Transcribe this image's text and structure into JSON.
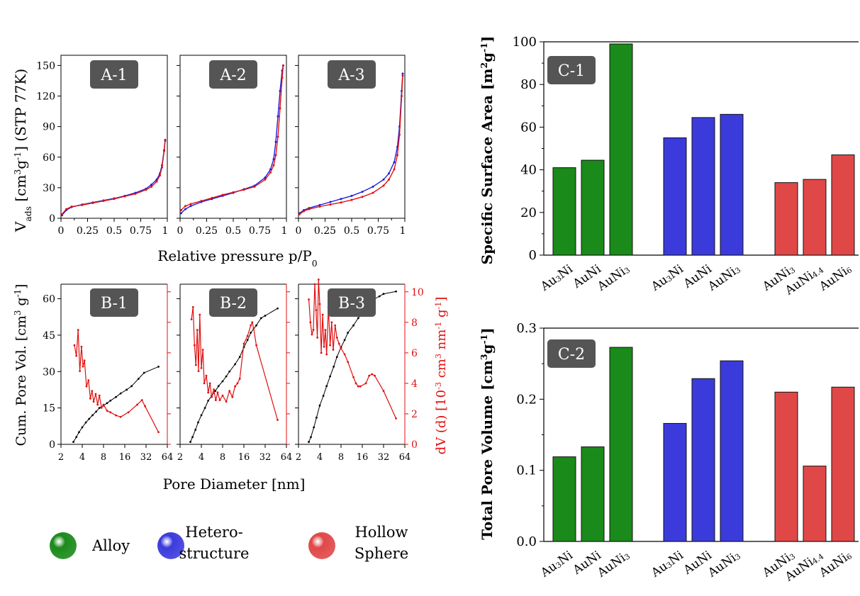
{
  "colors": {
    "alloy": "#1a8a1a",
    "hetero": "#3b3bdc",
    "hollow": "#e04848",
    "ads_line": "#1f1fe0",
    "des_line": "#e01010",
    "cum_line": "#000000",
    "dv_line": "#e01010",
    "axis_red": "#e01010",
    "panel_label_bg": "#555555",
    "panel_label_fg": "#ffffff"
  },
  "legend": {
    "items": [
      {
        "label_lines": [
          "Alloy"
        ],
        "color": "alloy",
        "icon": "sphere-icon"
      },
      {
        "label_lines": [
          "Hetero-",
          "structure"
        ],
        "color": "hetero",
        "icon": "sphere-icon"
      },
      {
        "label_lines": [
          "Hollow",
          "Sphere"
        ],
        "color": "hollow",
        "icon": "sphere-icon"
      }
    ]
  },
  "chart_data": [
    {
      "id": "A",
      "type": "line",
      "panels": [
        "A-1",
        "A-2",
        "A-3"
      ],
      "ylabel": "V_ads [cm3g-1] (STP 77K)",
      "ylabel_parts": {
        "main": "V",
        "sub": "ads",
        "rest1": " [cm",
        "sup1": "3",
        "rest2": "g",
        "sup2": "-1",
        "rest3": "]  (STP 77K)"
      },
      "xlabel": "Relative pressure p/P0",
      "xlabel_parts": {
        "main": "Relative pressure p/P",
        "sub": "0"
      },
      "xlim": [
        0,
        1
      ],
      "ylim": [
        0,
        160
      ],
      "yticks": [
        0,
        30,
        60,
        90,
        120,
        150
      ],
      "xticks": [
        0,
        0.25,
        0.5,
        0.75,
        1
      ],
      "xtick_labels": [
        "0",
        "0.25",
        "0.5",
        "0.75",
        "1"
      ],
      "series": [
        [
          {
            "kind": "ads",
            "x": [
              0.01,
              0.05,
              0.1,
              0.2,
              0.3,
              0.4,
              0.5,
              0.6,
              0.7,
              0.8,
              0.85,
              0.9,
              0.93,
              0.95,
              0.97,
              0.98
            ],
            "y": [
              3,
              8,
              11,
              13.5,
              15.5,
              17.5,
              19.5,
              22,
              25,
              29,
              33,
              38,
              44,
              52,
              67,
              77
            ]
          },
          {
            "kind": "des",
            "x": [
              0.01,
              0.05,
              0.1,
              0.2,
              0.3,
              0.4,
              0.5,
              0.6,
              0.7,
              0.8,
              0.85,
              0.9,
              0.93,
              0.95,
              0.97,
              0.98
            ],
            "y": [
              4,
              9,
              11.5,
              13,
              15,
              17,
              19,
              21.5,
              24,
              28,
              31,
              36,
              42,
              50,
              66,
              76
            ]
          }
        ],
        [
          {
            "kind": "ads",
            "x": [
              0.01,
              0.05,
              0.1,
              0.2,
              0.3,
              0.4,
              0.5,
              0.6,
              0.7,
              0.8,
              0.85,
              0.88,
              0.9,
              0.92,
              0.94,
              0.96,
              0.97
            ],
            "y": [
              5,
              9,
              12,
              16,
              19,
              22,
              25,
              28.5,
              32,
              40,
              48,
              58,
              75,
              100,
              125,
              145,
              150
            ]
          },
          {
            "kind": "des",
            "x": [
              0.01,
              0.05,
              0.1,
              0.2,
              0.3,
              0.4,
              0.5,
              0.6,
              0.7,
              0.8,
              0.85,
              0.88,
              0.9,
              0.92,
              0.94,
              0.96,
              0.97
            ],
            "y": [
              8,
              12,
              14,
              17,
              20,
              23,
              25.5,
              28,
              31,
              38,
              45,
              52,
              62,
              80,
              108,
              138,
              150
            ]
          }
        ],
        [
          {
            "kind": "ads",
            "x": [
              0.01,
              0.05,
              0.1,
              0.2,
              0.3,
              0.4,
              0.5,
              0.6,
              0.7,
              0.8,
              0.85,
              0.9,
              0.93,
              0.95,
              0.97,
              0.98
            ],
            "y": [
              5,
              8,
              10,
              13,
              16,
              19,
              22,
              26,
              31,
              38,
              44,
              55,
              70,
              90,
              125,
              142
            ]
          },
          {
            "kind": "des",
            "x": [
              0.01,
              0.05,
              0.1,
              0.2,
              0.3,
              0.4,
              0.5,
              0.6,
              0.7,
              0.8,
              0.85,
              0.9,
              0.93,
              0.95,
              0.97,
              0.98
            ],
            "y": [
              4,
              7,
              9,
              11.5,
              13.5,
              15.5,
              18,
              21,
              25,
              32,
              38,
              48,
              62,
              82,
              120,
              140
            ]
          }
        ]
      ]
    },
    {
      "id": "B",
      "type": "line",
      "panels": [
        "B-1",
        "B-2",
        "B-3"
      ],
      "ylabel": "Cum. Pore Vol. [cm3 g-1]",
      "ylabel_parts": {
        "main": "Cum. Pore Vol. [cm",
        "sup1": "3",
        "rest1": " g",
        "sup2": "-1",
        "rest2": "]"
      },
      "ylabel_right": "dV (d) [10-3 cm3 nm-1 g-1]",
      "ylabel_right_parts": {
        "main": "dV (d) [10",
        "sup1": "-3",
        "rest1": " cm",
        "sup2": "3",
        "rest2": " nm",
        "sup3": "-1",
        "rest3": " g",
        "sup4": "-1",
        "rest4": "]"
      },
      "xlabel": "Pore Diameter [nm]",
      "xscale": "log2",
      "xlim": [
        2,
        64
      ],
      "xticks": [
        2,
        4,
        8,
        16,
        32,
        64
      ],
      "xtick_labels": [
        "2",
        "4",
        "8",
        "16",
        "32",
        "64"
      ],
      "ylim": [
        0,
        66
      ],
      "yticks": [
        0,
        15,
        30,
        45,
        60
      ],
      "ylim_right": [
        0,
        10.5
      ],
      "yticks_right": [
        0,
        2,
        4,
        6,
        8,
        10
      ],
      "series": [
        [
          {
            "kind": "cum",
            "x": [
              3,
              3.3,
              3.6,
              4,
              4.5,
              5,
              5.6,
              6.3,
              7,
              8,
              9,
              10,
              12,
              14,
              17,
              20,
              25,
              30,
              48
            ],
            "y": [
              1,
              3,
              5,
              7,
              9,
              10.5,
              12,
              13.5,
              15,
              16,
              17,
              18,
              19.5,
              21,
              22.5,
              24,
              27,
              29.5,
              32
            ]
          },
          {
            "kind": "dv",
            "x": [
              3.1,
              3.3,
              3.5,
              3.7,
              3.9,
              4.1,
              4.3,
              4.6,
              4.9,
              5.2,
              5.5,
              5.8,
              6.2,
              6.6,
              7,
              7.5,
              8,
              9,
              10,
              12,
              14,
              18,
              24,
              28,
              31,
              48
            ],
            "y": [
              6.5,
              5.8,
              7.5,
              4.8,
              6.4,
              5.1,
              5.5,
              3.8,
              4.2,
              3.0,
              3.5,
              2.8,
              3.3,
              2.6,
              3.2,
              2.4,
              2.6,
              2.2,
              2.1,
              1.9,
              1.8,
              2.1,
              2.6,
              2.9,
              2.5,
              0.8
            ]
          }
        ],
        [
          {
            "kind": "cum",
            "x": [
              2.8,
              3,
              3.3,
              3.6,
              4,
              4.5,
              5,
              5.6,
              6.3,
              7,
              8,
              9,
              10,
              12,
              14,
              16,
              18,
              20,
              24,
              28,
              32,
              48
            ],
            "y": [
              1,
              3,
              6,
              9,
              12,
              15,
              18,
              20,
              22,
              24,
              26,
              28,
              30,
              33,
              36,
              40,
              43,
              46,
              49,
              52,
              53,
              56
            ]
          },
          {
            "kind": "dv",
            "x": [
              2.9,
              3.05,
              3.2,
              3.35,
              3.5,
              3.65,
              3.8,
              4,
              4.2,
              4.4,
              4.7,
              5,
              5.3,
              5.6,
              6,
              6.4,
              6.8,
              7.3,
              8,
              9,
              10,
              11,
              12,
              13,
              14,
              16,
              18,
              20,
              21,
              22,
              24,
              48
            ],
            "y": [
              8.2,
              9.0,
              6.5,
              5.2,
              7.5,
              4.8,
              8.5,
              5.0,
              6.2,
              4.0,
              4.5,
              3.4,
              4.0,
              3.1,
              3.6,
              2.9,
              3.4,
              2.9,
              3.2,
              2.8,
              3.5,
              3.1,
              3.8,
              4.0,
              4.3,
              6.6,
              7.1,
              7.8,
              8.0,
              7.6,
              6.5,
              1.6
            ]
          }
        ],
        [
          {
            "kind": "cum",
            "x": [
              2.8,
              3,
              3.3,
              3.6,
              4,
              4.5,
              5,
              5.6,
              6.3,
              7,
              8,
              9,
              10,
              12,
              14,
              16,
              18,
              20,
              24,
              28,
              32,
              48
            ],
            "y": [
              1,
              3,
              7,
              11,
              16,
              20,
              24,
              28,
              32,
              36,
              40,
              43,
              46,
              49,
              52,
              54,
              56,
              58,
              60,
              61,
              62,
              63
            ]
          },
          {
            "kind": "dv",
            "x": [
              2.8,
              2.95,
              3.1,
              3.25,
              3.4,
              3.55,
              3.7,
              3.85,
              4,
              4.2,
              4.4,
              4.6,
              4.8,
              5.0,
              5.3,
              5.6,
              5.9,
              6.2,
              6.6,
              7,
              7.5,
              8,
              9,
              10,
              12,
              13,
              14,
              15,
              18,
              20,
              22,
              24,
              32,
              48
            ],
            "y": [
              9.5,
              8.0,
              7.2,
              7.5,
              10.5,
              8.8,
              7.0,
              10.8,
              9.2,
              6.0,
              8.5,
              6.4,
              7.5,
              5.9,
              9.0,
              6.5,
              8.0,
              6.2,
              7.8,
              7.0,
              6.6,
              6.3,
              5.9,
              5.4,
              4.4,
              4.0,
              3.8,
              3.8,
              4.0,
              4.5,
              4.6,
              4.5,
              3.5,
              1.7
            ]
          }
        ]
      ]
    },
    {
      "id": "C-1",
      "type": "bar",
      "panel_label": "C-1",
      "ylabel": "Specific Surface Area [m2g-1]",
      "ylabel_parts": {
        "main": "Specific Surface Area [m",
        "sup1": "2",
        "rest1": "g",
        "sup2": "-1",
        "rest2": "]"
      },
      "ylim": [
        0,
        100
      ],
      "yticks": [
        0,
        20,
        40,
        60,
        80,
        100
      ],
      "groups": [
        {
          "name": "Alloy",
          "color": "alloy",
          "categories": [
            "Au3Ni",
            "AuNi",
            "AuNi3"
          ],
          "values": [
            41,
            44.5,
            99
          ]
        },
        {
          "name": "Hetero-structure",
          "color": "hetero",
          "categories": [
            "Au3Ni",
            "AuNi",
            "AuNi3"
          ],
          "values": [
            55,
            64.5,
            66
          ]
        },
        {
          "name": "Hollow Sphere",
          "color": "hollow",
          "categories": [
            "AuNi3",
            "AuNi4.4",
            "AuNi6"
          ],
          "values": [
            34,
            35.5,
            47
          ]
        }
      ]
    },
    {
      "id": "C-2",
      "type": "bar",
      "panel_label": "C-2",
      "ylabel": "Total Pore Volume [cm3g-1]",
      "ylabel_parts": {
        "main": "Total Pore Volume [cm",
        "sup1": "3",
        "rest1": "g",
        "sup2": "-1",
        "rest2": "]"
      },
      "ylim": [
        0,
        0.3
      ],
      "yticks": [
        0.0,
        0.1,
        0.2,
        0.3
      ],
      "ytick_labels": [
        "0.0",
        "0.1",
        "0.2",
        "0.3"
      ],
      "groups": [
        {
          "name": "Alloy",
          "color": "alloy",
          "categories": [
            "Au3Ni",
            "AuNi",
            "AuNi3"
          ],
          "values": [
            0.119,
            0.133,
            0.273
          ]
        },
        {
          "name": "Hetero-structure",
          "color": "hetero",
          "categories": [
            "Au3Ni",
            "AuNi",
            "AuNi3"
          ],
          "values": [
            0.166,
            0.229,
            0.254
          ]
        },
        {
          "name": "Hollow Sphere",
          "color": "hollow",
          "categories": [
            "AuNi3",
            "AuNi4.4",
            "AuNi6"
          ],
          "values": [
            0.21,
            0.106,
            0.217
          ]
        }
      ]
    }
  ]
}
